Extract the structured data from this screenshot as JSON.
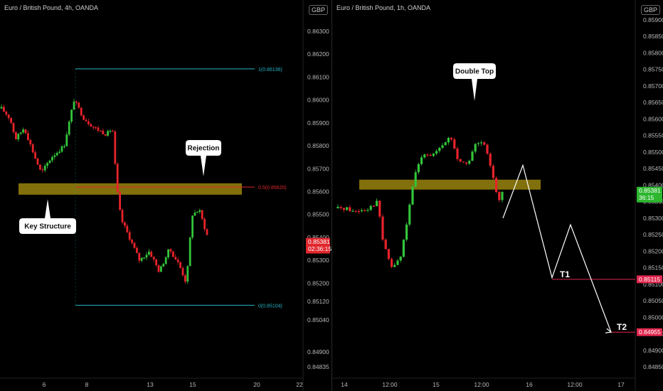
{
  "currency_button": "GBP",
  "left_chart": {
    "title": "Euro / British Pound, 4h, OANDA",
    "y_ticks": [
      "0.86300",
      "0.86200",
      "0.86100",
      "0.86000",
      "0.85900",
      "0.85800",
      "0.85700",
      "0.85600",
      "0.85500",
      "0.85400",
      "0.85300",
      "0.85200",
      "0.85120",
      "0.85040",
      "0.84900",
      "0.84835"
    ],
    "x_ticks": [
      "6",
      "8",
      "13",
      "15",
      "20",
      "22"
    ],
    "price_tag": {
      "price": "0.85381",
      "countdown": "02:36:15",
      "color": "#e0272d"
    },
    "fib_levels": [
      {
        "label": "1(0.86136)",
        "color": "#25b5c6"
      },
      {
        "label": "0.5(0.85620)",
        "color": "#e0272d"
      },
      {
        "label": "0(0.85104)",
        "color": "#25b5c6"
      }
    ],
    "annotations": [
      {
        "text": "Rejection"
      },
      {
        "text": "Key Structure"
      }
    ]
  },
  "right_chart": {
    "title": "Euro / British Pound, 1h, OANDA",
    "y_ticks": [
      "0.85900",
      "0.85850",
      "0.85800",
      "0.85750",
      "0.85700",
      "0.85650",
      "0.85600",
      "0.85550",
      "0.85500",
      "0.85450",
      "0.85400",
      "0.85350",
      "0.85300",
      "0.85250",
      "0.85200",
      "0.85150",
      "0.85100",
      "0.85050",
      "0.85000",
      "0.84950",
      "0.84900",
      "0.84850"
    ],
    "x_ticks": [
      "14",
      "12:00",
      "15",
      "12:00",
      "16",
      "12:00",
      "17"
    ],
    "price_tag": {
      "price": "0.85381",
      "countdown": "36:15",
      "color": "#2db72f"
    },
    "target_tags": [
      {
        "price": "0.85115",
        "color": "#e0274e"
      },
      {
        "price": "0.84955",
        "color": "#e0274e"
      }
    ],
    "annotations": [
      {
        "text": "Double Top"
      },
      {
        "text": "T1"
      },
      {
        "text": "T2"
      }
    ]
  },
  "chart_data": [
    {
      "type": "candlestick",
      "title": "Euro / British Pound, 4h, OANDA",
      "ylim": [
        0.84835,
        0.863
      ],
      "key_zone": [
        0.8559,
        0.8563
      ],
      "fibonacci": {
        "1": 0.86136,
        "0.5": 0.8562,
        "0": 0.85104
      },
      "current_price": 0.85381,
      "colors": {
        "up": "#33c43b",
        "down": "#e8232b",
        "zone": "#8c7a0c"
      }
    },
    {
      "type": "candlestick",
      "title": "Euro / British Pound, 1h, OANDA",
      "ylim": [
        0.8482,
        0.8593
      ],
      "key_zone": [
        0.8538,
        0.8541
      ],
      "current_price": 0.85381,
      "targets": {
        "T1": 0.85115,
        "T2": 0.84955
      },
      "projection_path": [
        0.853,
        0.8546,
        0.8512,
        0.8528,
        0.84955
      ],
      "colors": {
        "up": "#33c43b",
        "down": "#e8232b",
        "zone": "#8c7a0c"
      }
    }
  ]
}
